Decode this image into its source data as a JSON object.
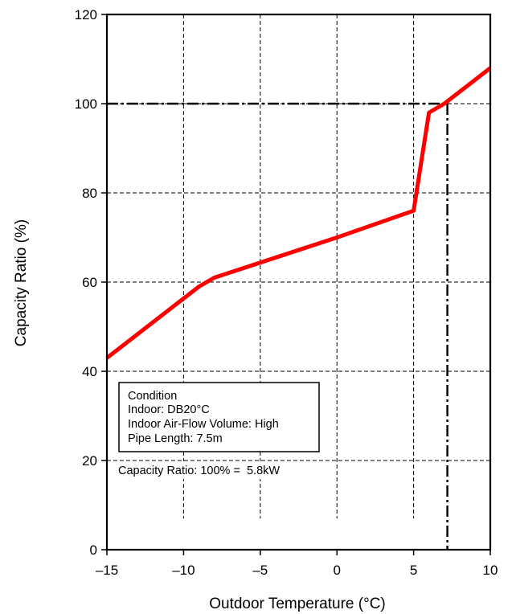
{
  "chart_data": {
    "type": "line",
    "title": "",
    "xlabel": "Outdoor Temperature (°C)",
    "ylabel": "Capacity Ratio (%)",
    "xlim": [
      -15,
      10
    ],
    "ylim": [
      0,
      120
    ],
    "x_ticks": [
      -15,
      -10,
      -5,
      0,
      5,
      10
    ],
    "x_tick_labels": [
      "–15",
      "–10",
      "–5",
      "0",
      "5",
      "10"
    ],
    "y_ticks": [
      0,
      20,
      40,
      60,
      80,
      100,
      120
    ],
    "y_tick_labels": [
      "0",
      "20",
      "40",
      "60",
      "80",
      "100",
      "120"
    ],
    "grid": true,
    "series": [
      {
        "color": "#ff0000",
        "x": [
          -15,
          -9,
          -8,
          0,
          5,
          6,
          7,
          10
        ],
        "y": [
          43,
          59,
          61,
          70,
          76,
          98,
          100,
          108
        ]
      }
    ],
    "reference_lines": {
      "color": "#000000",
      "style": "dash-dot",
      "y": 100,
      "x": 7.2
    },
    "annotations": {
      "condition_box": [
        "Condition",
        "Indoor: DB20°C",
        "Indoor Air-Flow Volume: High",
        "Pipe Length: 7.5m"
      ],
      "capacity_note": "Capacity Ratio: 100% =  5.8kW"
    }
  }
}
